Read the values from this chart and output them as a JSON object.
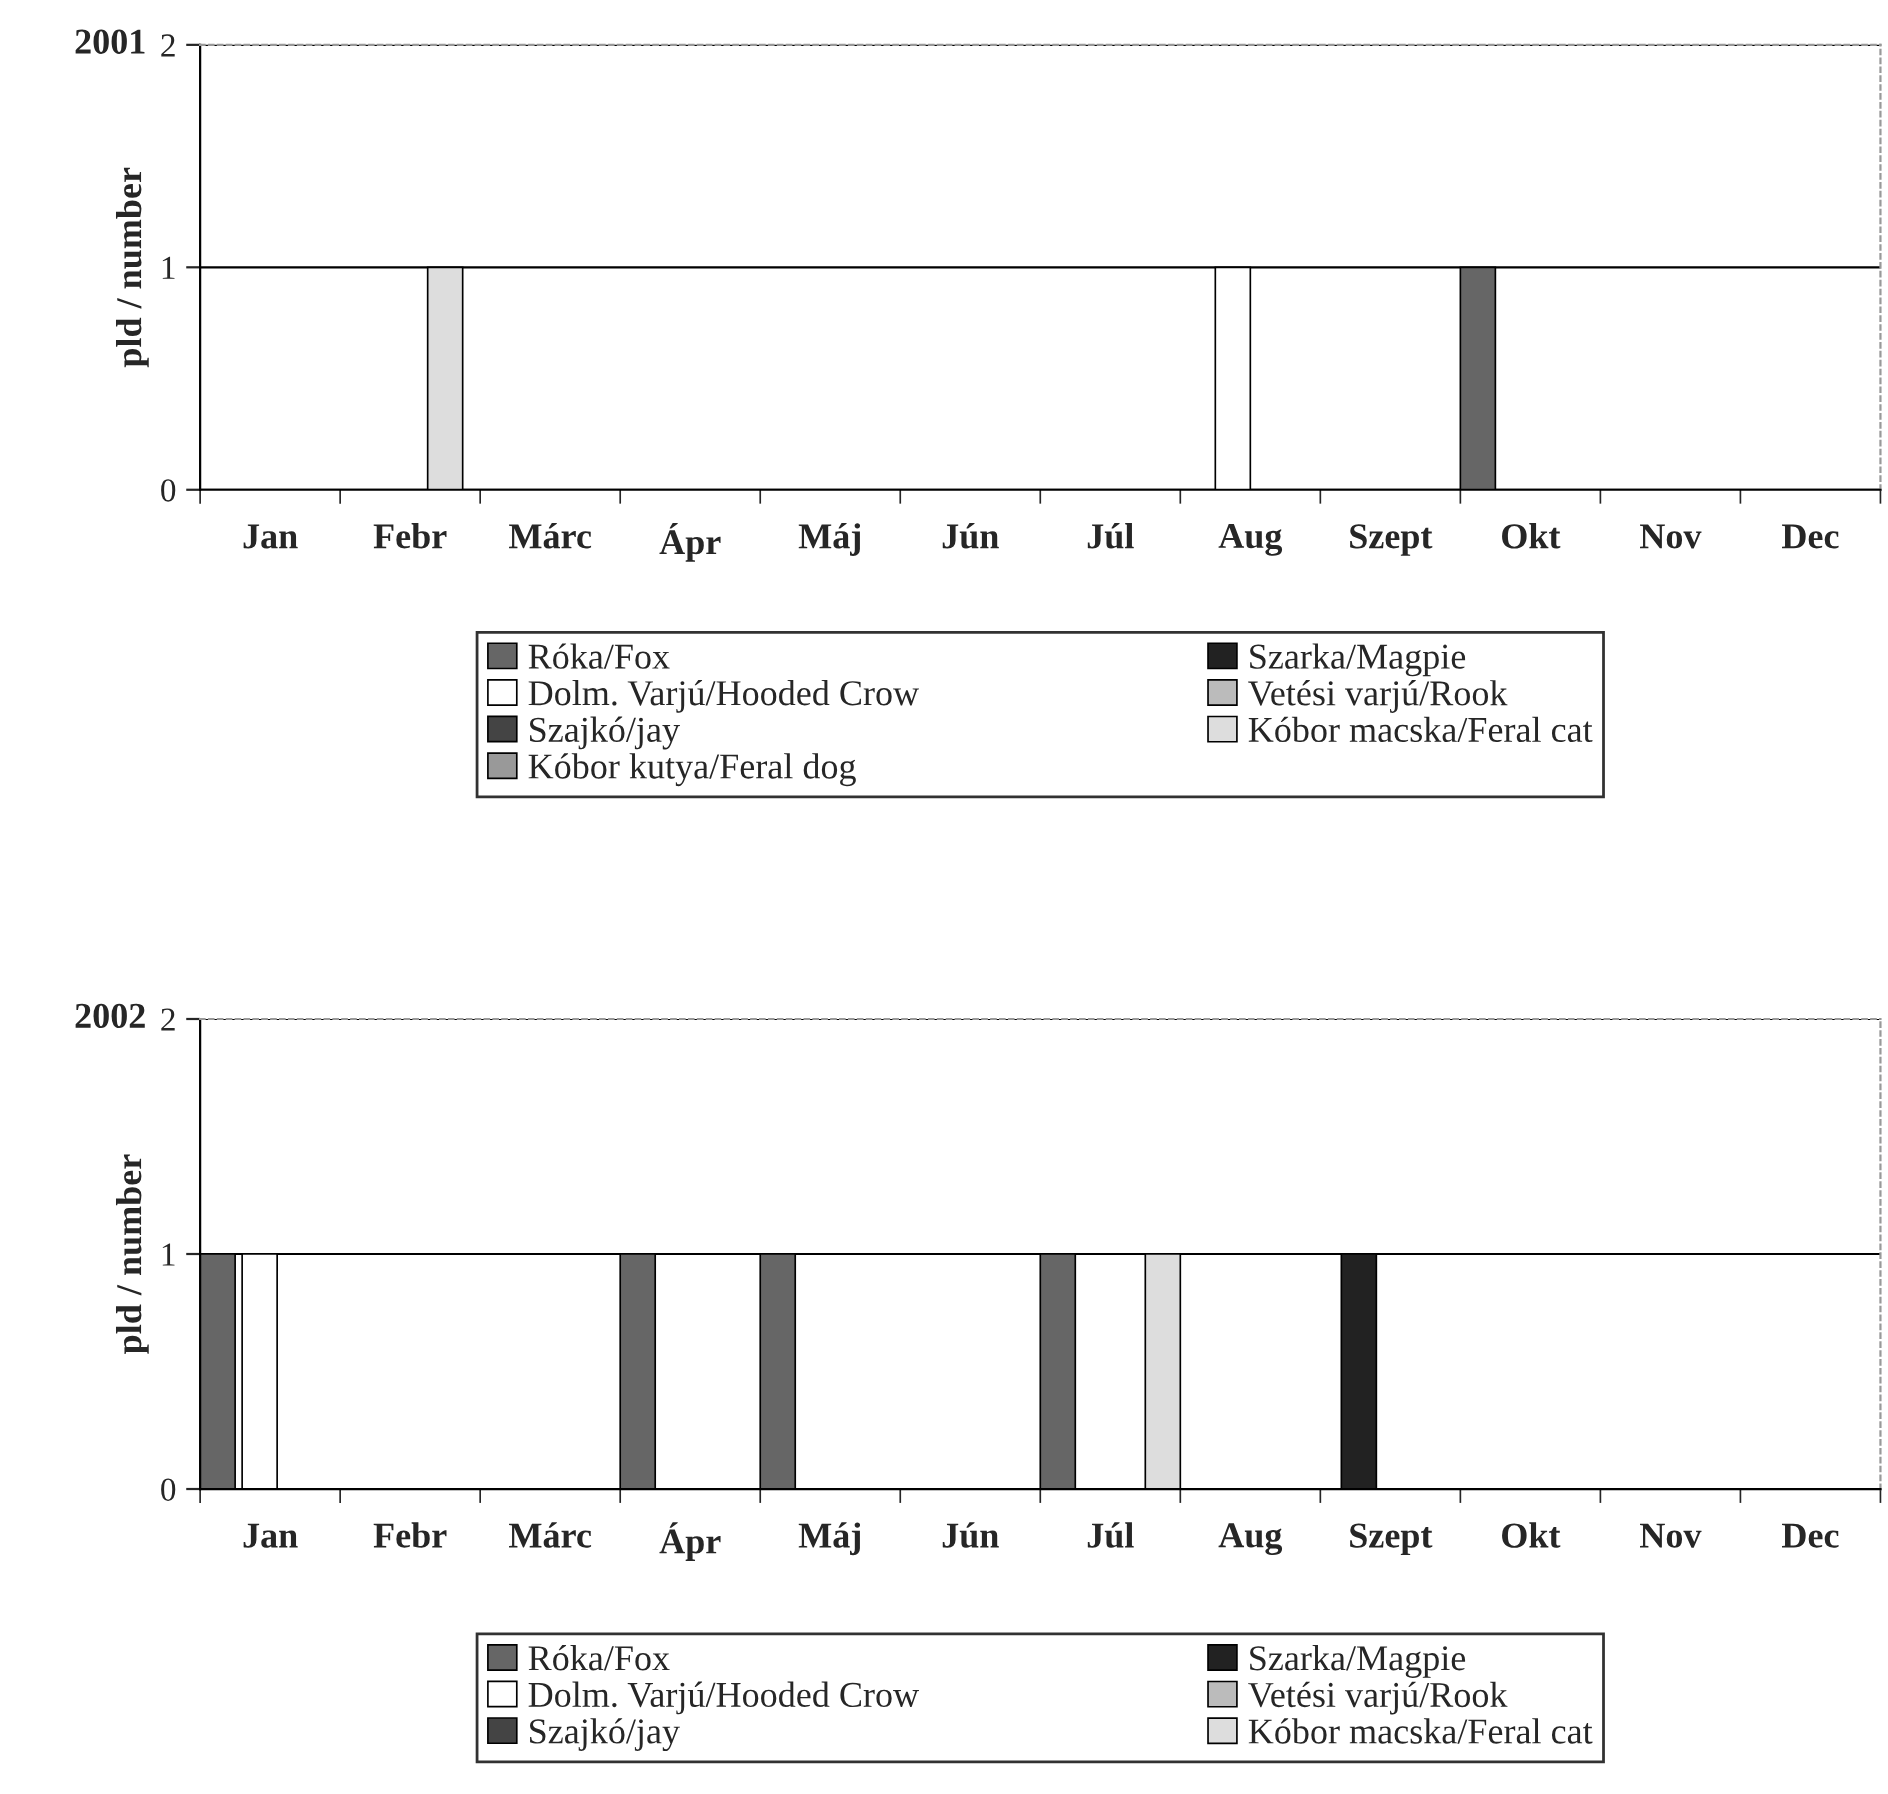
{
  "chart_data": [
    {
      "type": "bar",
      "title": "2001",
      "ylabel": "pld / number",
      "categories": [
        "Jan",
        "Febr",
        "Márc",
        "Ápr",
        "Máj",
        "Jún",
        "Júl",
        "Aug",
        "Szept",
        "Okt",
        "Nov",
        "Dec"
      ],
      "series": [
        {
          "name": "Róka/Fox",
          "color": "#666666",
          "values": [
            null,
            null,
            null,
            null,
            null,
            null,
            null,
            null,
            null,
            1,
            null,
            null
          ]
        },
        {
          "name": "Szarka/Magpie",
          "color": "#222222",
          "values": [
            null,
            null,
            null,
            null,
            null,
            null,
            null,
            null,
            null,
            null,
            null,
            null
          ]
        },
        {
          "name": "Dolm. Varjú/Hooded Crow",
          "color": "#ffffff",
          "values": [
            null,
            null,
            null,
            null,
            null,
            null,
            null,
            1,
            null,
            null,
            null,
            null
          ]
        },
        {
          "name": "Vetési varjú/Rook",
          "color": "#bbbbbb",
          "values": [
            null,
            null,
            null,
            null,
            null,
            null,
            null,
            null,
            null,
            null,
            null,
            null
          ]
        },
        {
          "name": "Szajkó/jay",
          "color": "#444444",
          "values": [
            null,
            null,
            null,
            null,
            null,
            null,
            null,
            null,
            null,
            null,
            null,
            null
          ]
        },
        {
          "name": "Kóbor macska/Feral cat",
          "color": "#dddddd",
          "values": [
            null,
            1,
            null,
            null,
            null,
            null,
            null,
            null,
            null,
            null,
            null,
            null
          ]
        },
        {
          "name": "Kóbor kutya/Feral dog",
          "color": "#999999",
          "values": [
            null,
            null,
            null,
            null,
            null,
            null,
            null,
            null,
            null,
            null,
            null,
            null
          ]
        }
      ],
      "ylim": [
        0,
        2
      ],
      "yticks": [
        0,
        1,
        2
      ],
      "grid": "y",
      "legend": "bottom"
    },
    {
      "type": "bar",
      "title": "2002",
      "ylabel": "pld / number",
      "categories": [
        "Jan",
        "Febr",
        "Márc",
        "Ápr",
        "Máj",
        "Jún",
        "Júl",
        "Aug",
        "Szept",
        "Okt",
        "Nov",
        "Dec"
      ],
      "series": [
        {
          "name": "Róka/Fox",
          "color": "#666666",
          "values": [
            1,
            null,
            null,
            1,
            1,
            null,
            1,
            null,
            null,
            null,
            null,
            null
          ]
        },
        {
          "name": "Szarka/Magpie",
          "color": "#222222",
          "values": [
            null,
            null,
            null,
            null,
            null,
            null,
            null,
            null,
            1,
            null,
            null,
            null
          ]
        },
        {
          "name": "Dolm. Varjú/Hooded Crow",
          "color": "#ffffff",
          "values": [
            1,
            null,
            null,
            null,
            null,
            null,
            null,
            null,
            null,
            null,
            null,
            null
          ]
        },
        {
          "name": "Vetési varjú/Rook",
          "color": "#bbbbbb",
          "values": [
            null,
            null,
            null,
            null,
            null,
            null,
            null,
            null,
            null,
            null,
            null,
            null
          ]
        },
        {
          "name": "Szajkó/jay",
          "color": "#444444",
          "values": [
            null,
            null,
            null,
            null,
            null,
            null,
            null,
            null,
            null,
            null,
            null,
            null
          ]
        },
        {
          "name": "Kóbor macska/Feral cat",
          "color": "#dddddd",
          "values": [
            null,
            null,
            null,
            null,
            null,
            null,
            1,
            null,
            null,
            null,
            null,
            null
          ]
        }
      ],
      "ylim": [
        0,
        2
      ],
      "yticks": [
        0,
        1,
        2
      ],
      "grid": "y",
      "legend": "bottom"
    }
  ]
}
